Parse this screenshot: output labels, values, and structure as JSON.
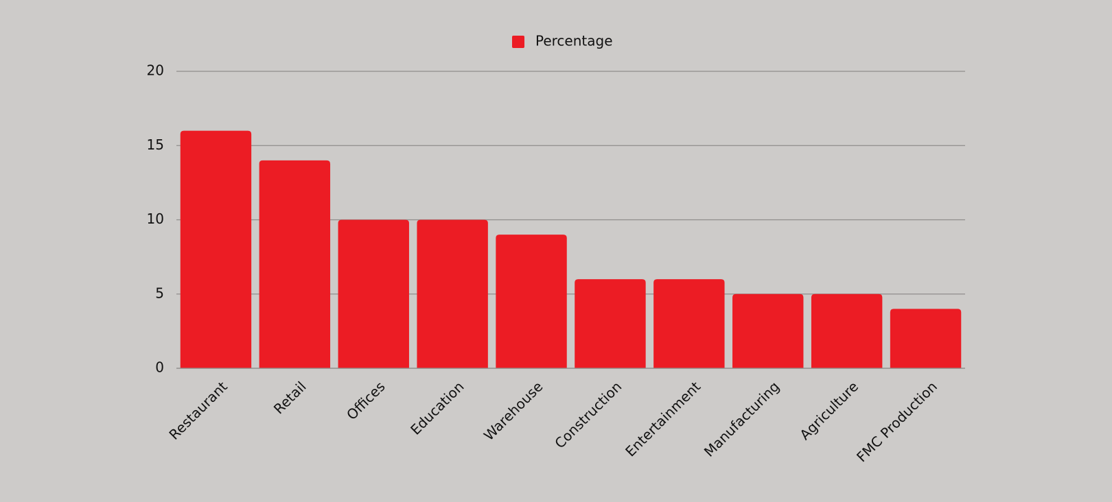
{
  "chart_data": {
    "type": "bar",
    "categories": [
      "Restaurant",
      "Retail",
      "Offices",
      "Education",
      "Warehouse",
      "Construction",
      "Entertainment",
      "Manufacturing",
      "Agriculture",
      "FMC Production"
    ],
    "series": [
      {
        "name": "Percentage",
        "color": "#ec1c24",
        "values": [
          16,
          14,
          10,
          10,
          9,
          6,
          6,
          5,
          5,
          4
        ]
      }
    ],
    "ylim": [
      0,
      20
    ],
    "yticks": [
      0,
      5,
      10,
      15,
      20
    ],
    "grid": true,
    "legend": "top"
  }
}
